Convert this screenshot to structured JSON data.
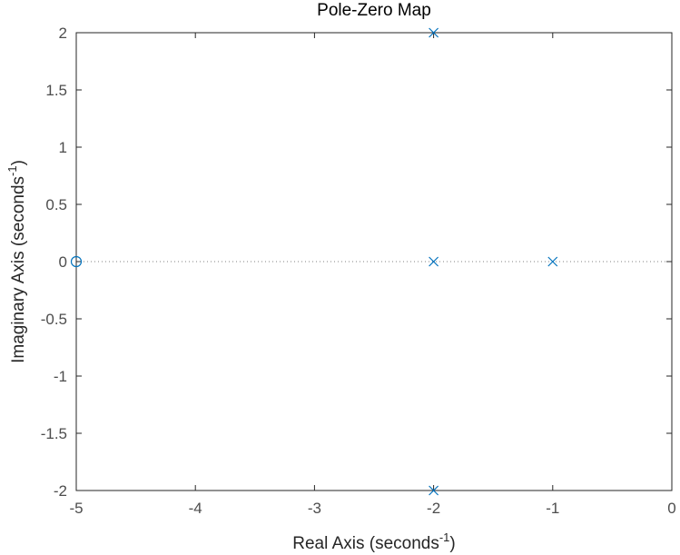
{
  "chart_data": {
    "type": "scatter",
    "title": "Pole-Zero Map",
    "xlabel": "Real Axis (seconds",
    "xlabel_exp": "-1",
    "xlabel_close": ")",
    "ylabel": "Imaginary Axis (seconds",
    "ylabel_exp": "-1",
    "ylabel_close": ")",
    "xlim": [
      -5,
      0
    ],
    "ylim": [
      -2,
      2
    ],
    "xticks": [
      -5,
      -4,
      -3,
      -2,
      -1,
      0
    ],
    "yticks": [
      -2,
      -1.5,
      -1,
      -0.5,
      0,
      0.5,
      1,
      1.5,
      2
    ],
    "xtick_labels": [
      "-5",
      "-4",
      "-3",
      "-2",
      "-1",
      "0"
    ],
    "ytick_labels": [
      "-2",
      "-1.5",
      "-1",
      "-0.5",
      "0",
      "0.5",
      "1",
      "1.5",
      "2"
    ],
    "grid": false,
    "reference_line": {
      "axis": "real",
      "y": 0,
      "style": "dotted"
    },
    "series": [
      {
        "marker": "x",
        "color": "#0072BD",
        "points": [
          {
            "x": -2,
            "y": 2
          },
          {
            "x": -2,
            "y": 0
          },
          {
            "x": -1,
            "y": 0
          },
          {
            "x": -2,
            "y": -2
          }
        ]
      },
      {
        "marker": "o",
        "color": "#0072BD",
        "points": [
          {
            "x": -5,
            "y": 0
          }
        ]
      }
    ]
  }
}
